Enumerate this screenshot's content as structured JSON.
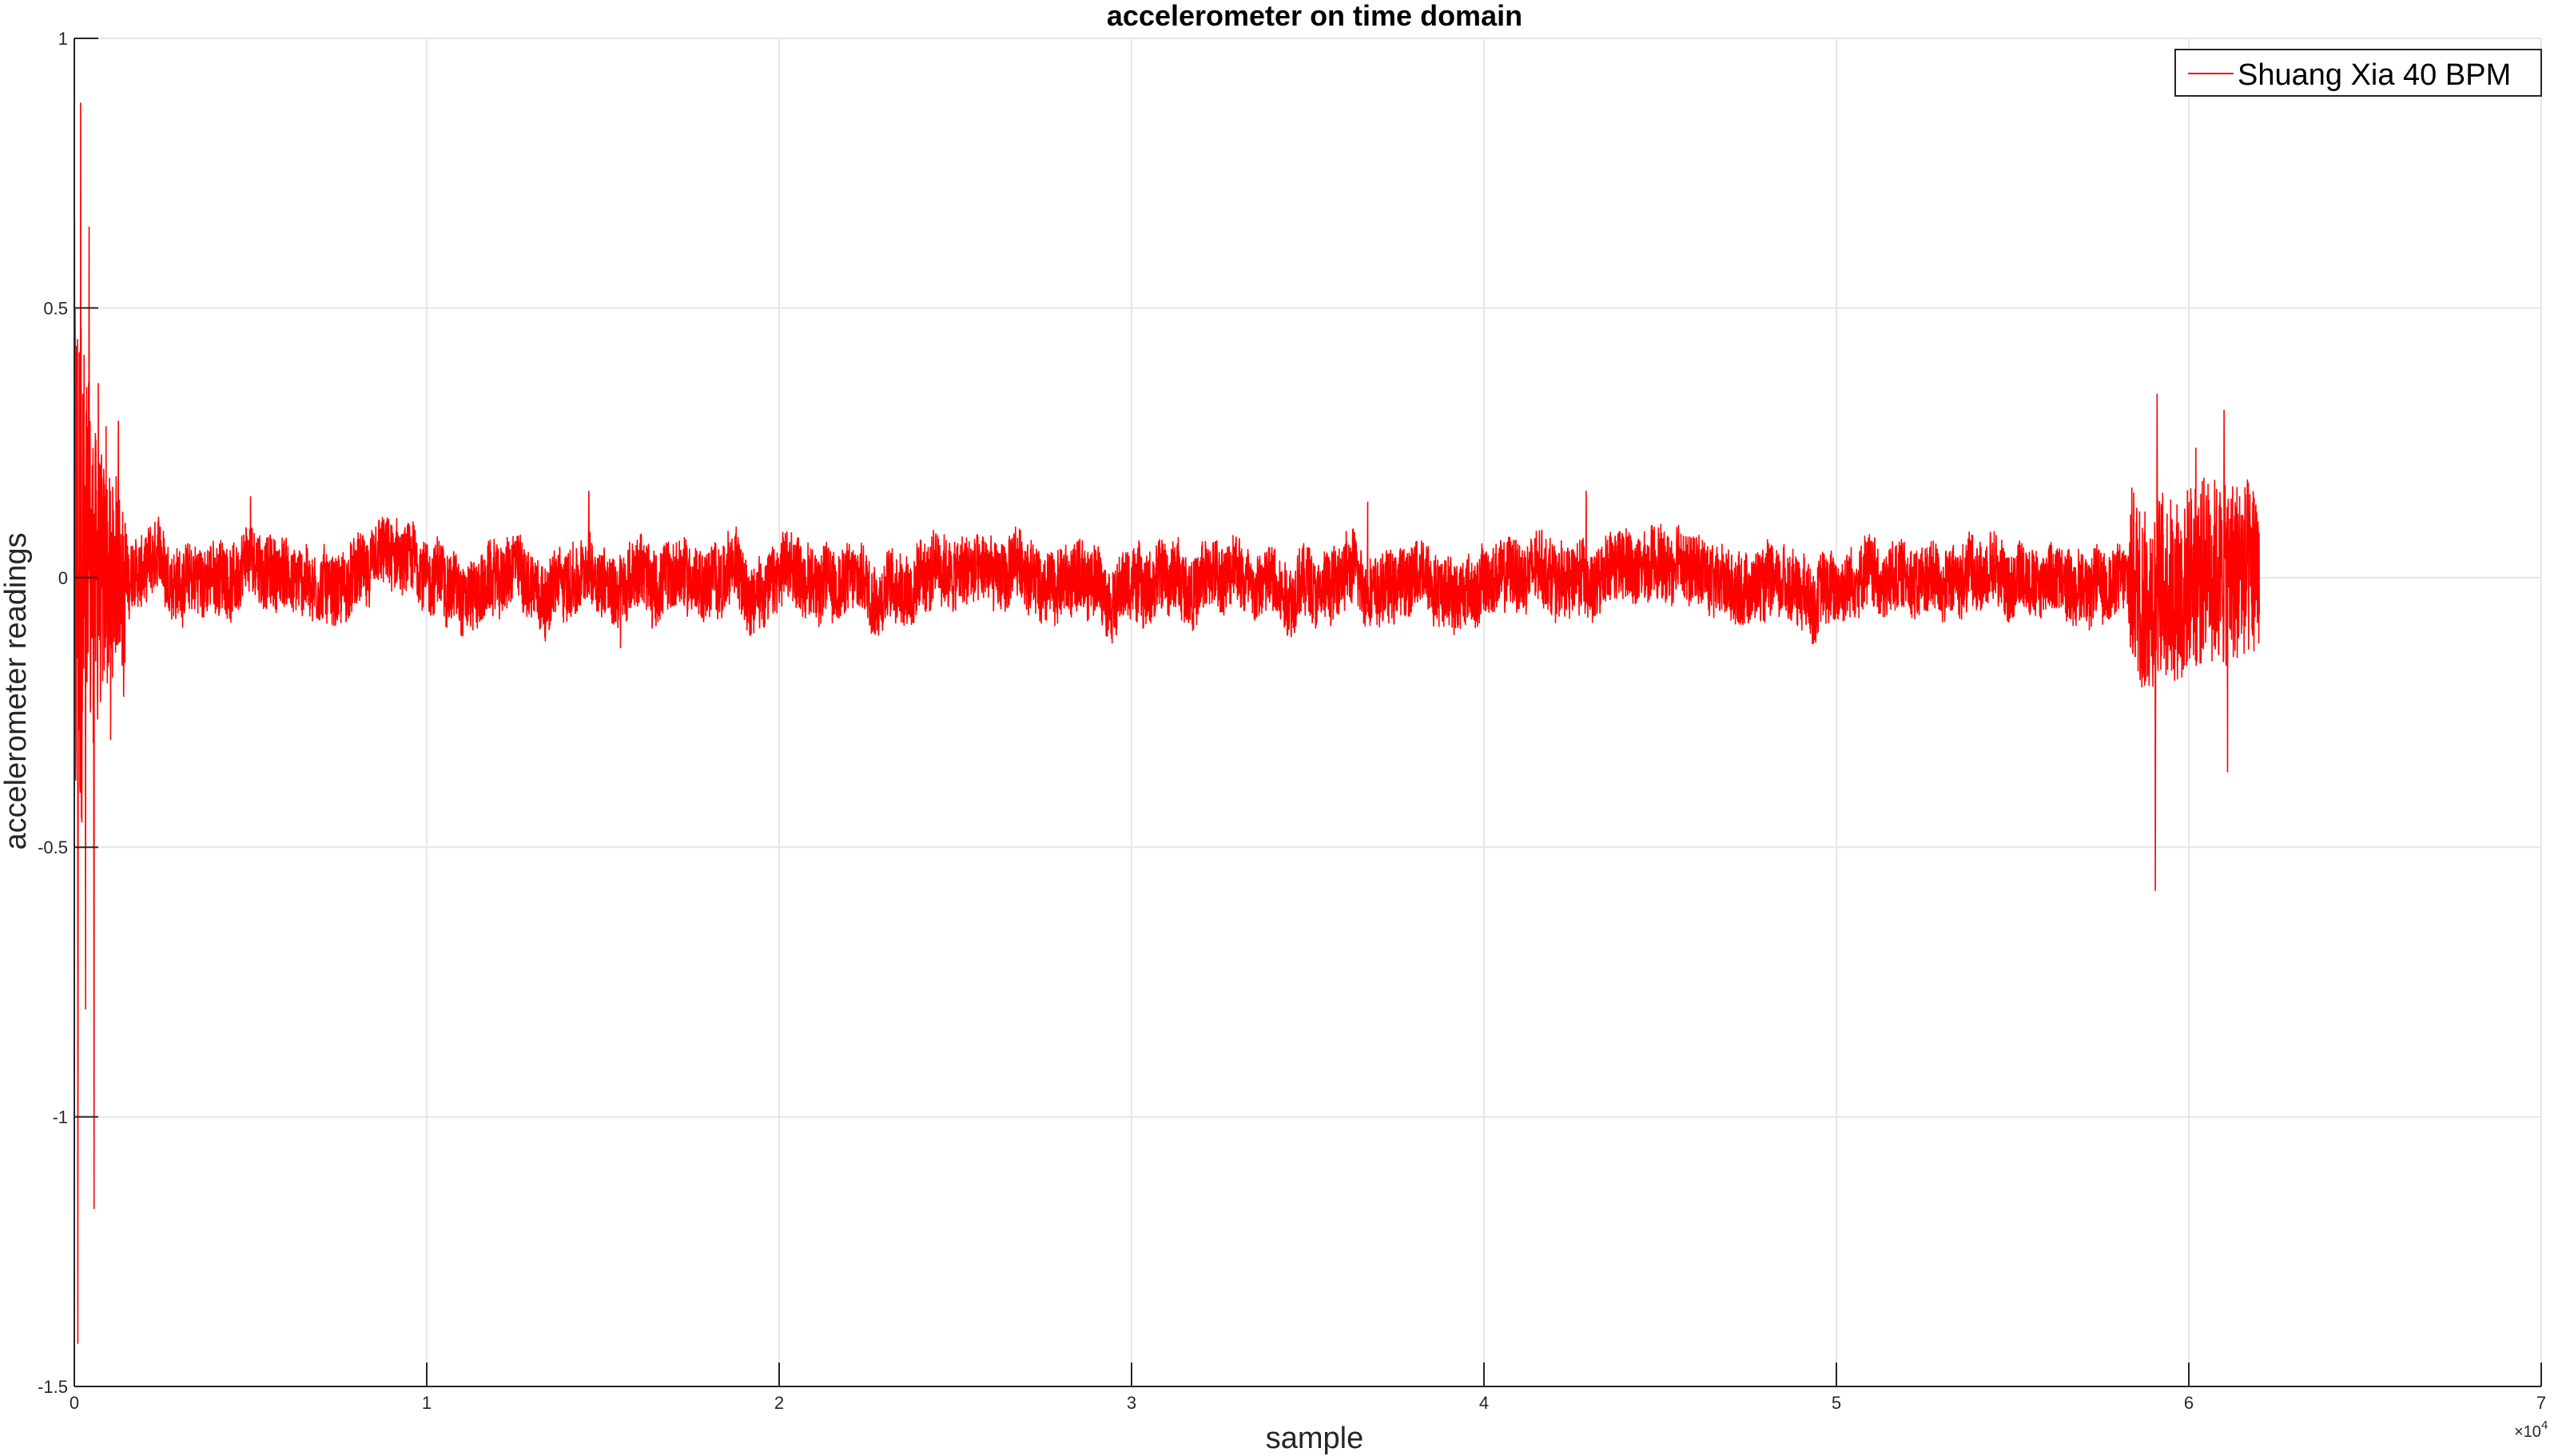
{
  "chart_data": {
    "type": "line",
    "title": "accelerometer on time domain",
    "xlabel": "sample",
    "ylabel": "accelerometer readings",
    "xlim": [
      0,
      70000
    ],
    "ylim": [
      -1.5,
      1
    ],
    "x_ticks": [
      0,
      10000,
      20000,
      30000,
      40000,
      50000,
      60000,
      70000
    ],
    "x_tick_labels": [
      "0",
      "1",
      "2",
      "3",
      "4",
      "5",
      "6",
      "7"
    ],
    "x_exponent_label": "×10",
    "x_exponent_power": "4",
    "y_ticks": [
      -1.5,
      -1,
      -0.5,
      0,
      0.5,
      1
    ],
    "y_tick_labels": [
      "-1.5",
      "-1",
      "-0.5",
      "0",
      "0.5",
      "1"
    ],
    "grid": true,
    "legend_position": "top-right",
    "series": [
      {
        "name": "Shuang Xia 40 BPM",
        "color": "#ff0000",
        "x_range": [
          0,
          62000
        ],
        "notable_points": [
          {
            "x": 100,
            "y": -1.42
          },
          {
            "x": 180,
            "y": 0.88
          },
          {
            "x": 320,
            "y": -0.8
          },
          {
            "x": 420,
            "y": 0.65
          },
          {
            "x": 560,
            "y": -1.17
          },
          {
            "x": 680,
            "y": 0.36
          },
          {
            "x": 900,
            "y": 0.28
          },
          {
            "x": 1030,
            "y": -0.3
          },
          {
            "x": 1250,
            "y": 0.29
          },
          {
            "x": 1400,
            "y": -0.22
          },
          {
            "x": 5000,
            "y": 0.15
          },
          {
            "x": 14600,
            "y": 0.16
          },
          {
            "x": 15500,
            "y": -0.13
          },
          {
            "x": 36700,
            "y": 0.14
          },
          {
            "x": 42900,
            "y": 0.16
          },
          {
            "x": 59100,
            "y": 0.34
          },
          {
            "x": 59050,
            "y": -0.58
          },
          {
            "x": 60200,
            "y": 0.24
          },
          {
            "x": 61000,
            "y": 0.31
          },
          {
            "x": 61100,
            "y": -0.36
          },
          {
            "x": 61900,
            "y": 0.13
          }
        ]
      }
    ]
  }
}
